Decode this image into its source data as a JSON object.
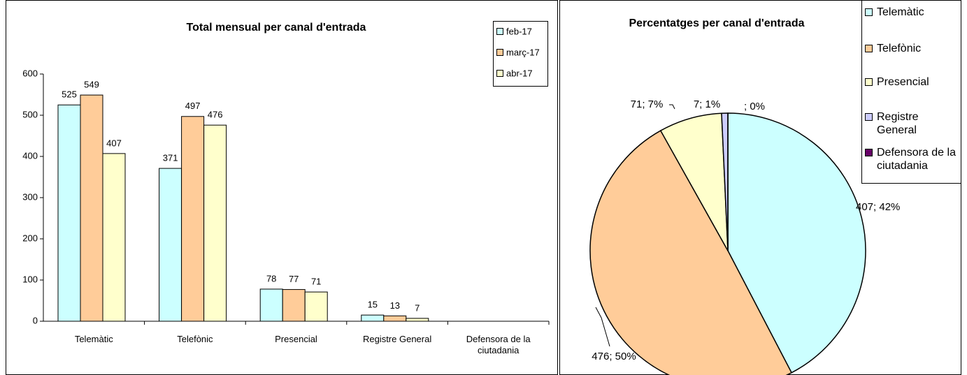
{
  "chart_data": [
    {
      "type": "bar",
      "title": "Total mensual per canal d'entrada",
      "categories": [
        "Telemàtic",
        "Telefònic",
        "Presencial",
        "Registre General",
        "Defensora de la ciutadania"
      ],
      "series": [
        {
          "name": "feb-17",
          "color": "#ccffff",
          "values": [
            525,
            371,
            78,
            15,
            null
          ]
        },
        {
          "name": "març-17",
          "color": "#ffcc99",
          "values": [
            549,
            497,
            77,
            13,
            null
          ]
        },
        {
          "name": "abr-17",
          "color": "#ffffcc",
          "values": [
            407,
            476,
            71,
            7,
            null
          ]
        }
      ],
      "ylim": [
        0,
        600
      ],
      "yticks": [
        0,
        100,
        200,
        300,
        400,
        500,
        600
      ],
      "grid": false,
      "legend": "top-right"
    },
    {
      "type": "pie",
      "title": "Percentatges per canal d'entrada",
      "categories": [
        "Telemàtic",
        "Telefònic",
        "Presencial",
        "Registre General",
        "Defensora de la ciutadania"
      ],
      "values": [
        407,
        476,
        71,
        7,
        0
      ],
      "value_labels": [
        "407; 42%",
        "476; 50%",
        "71; 7%",
        "7; 1%",
        "; 0%"
      ],
      "colors": [
        "#ccffff",
        "#ffcc99",
        "#ffffcc",
        "#ccccff",
        "#660066"
      ],
      "legend": "top-right"
    }
  ]
}
